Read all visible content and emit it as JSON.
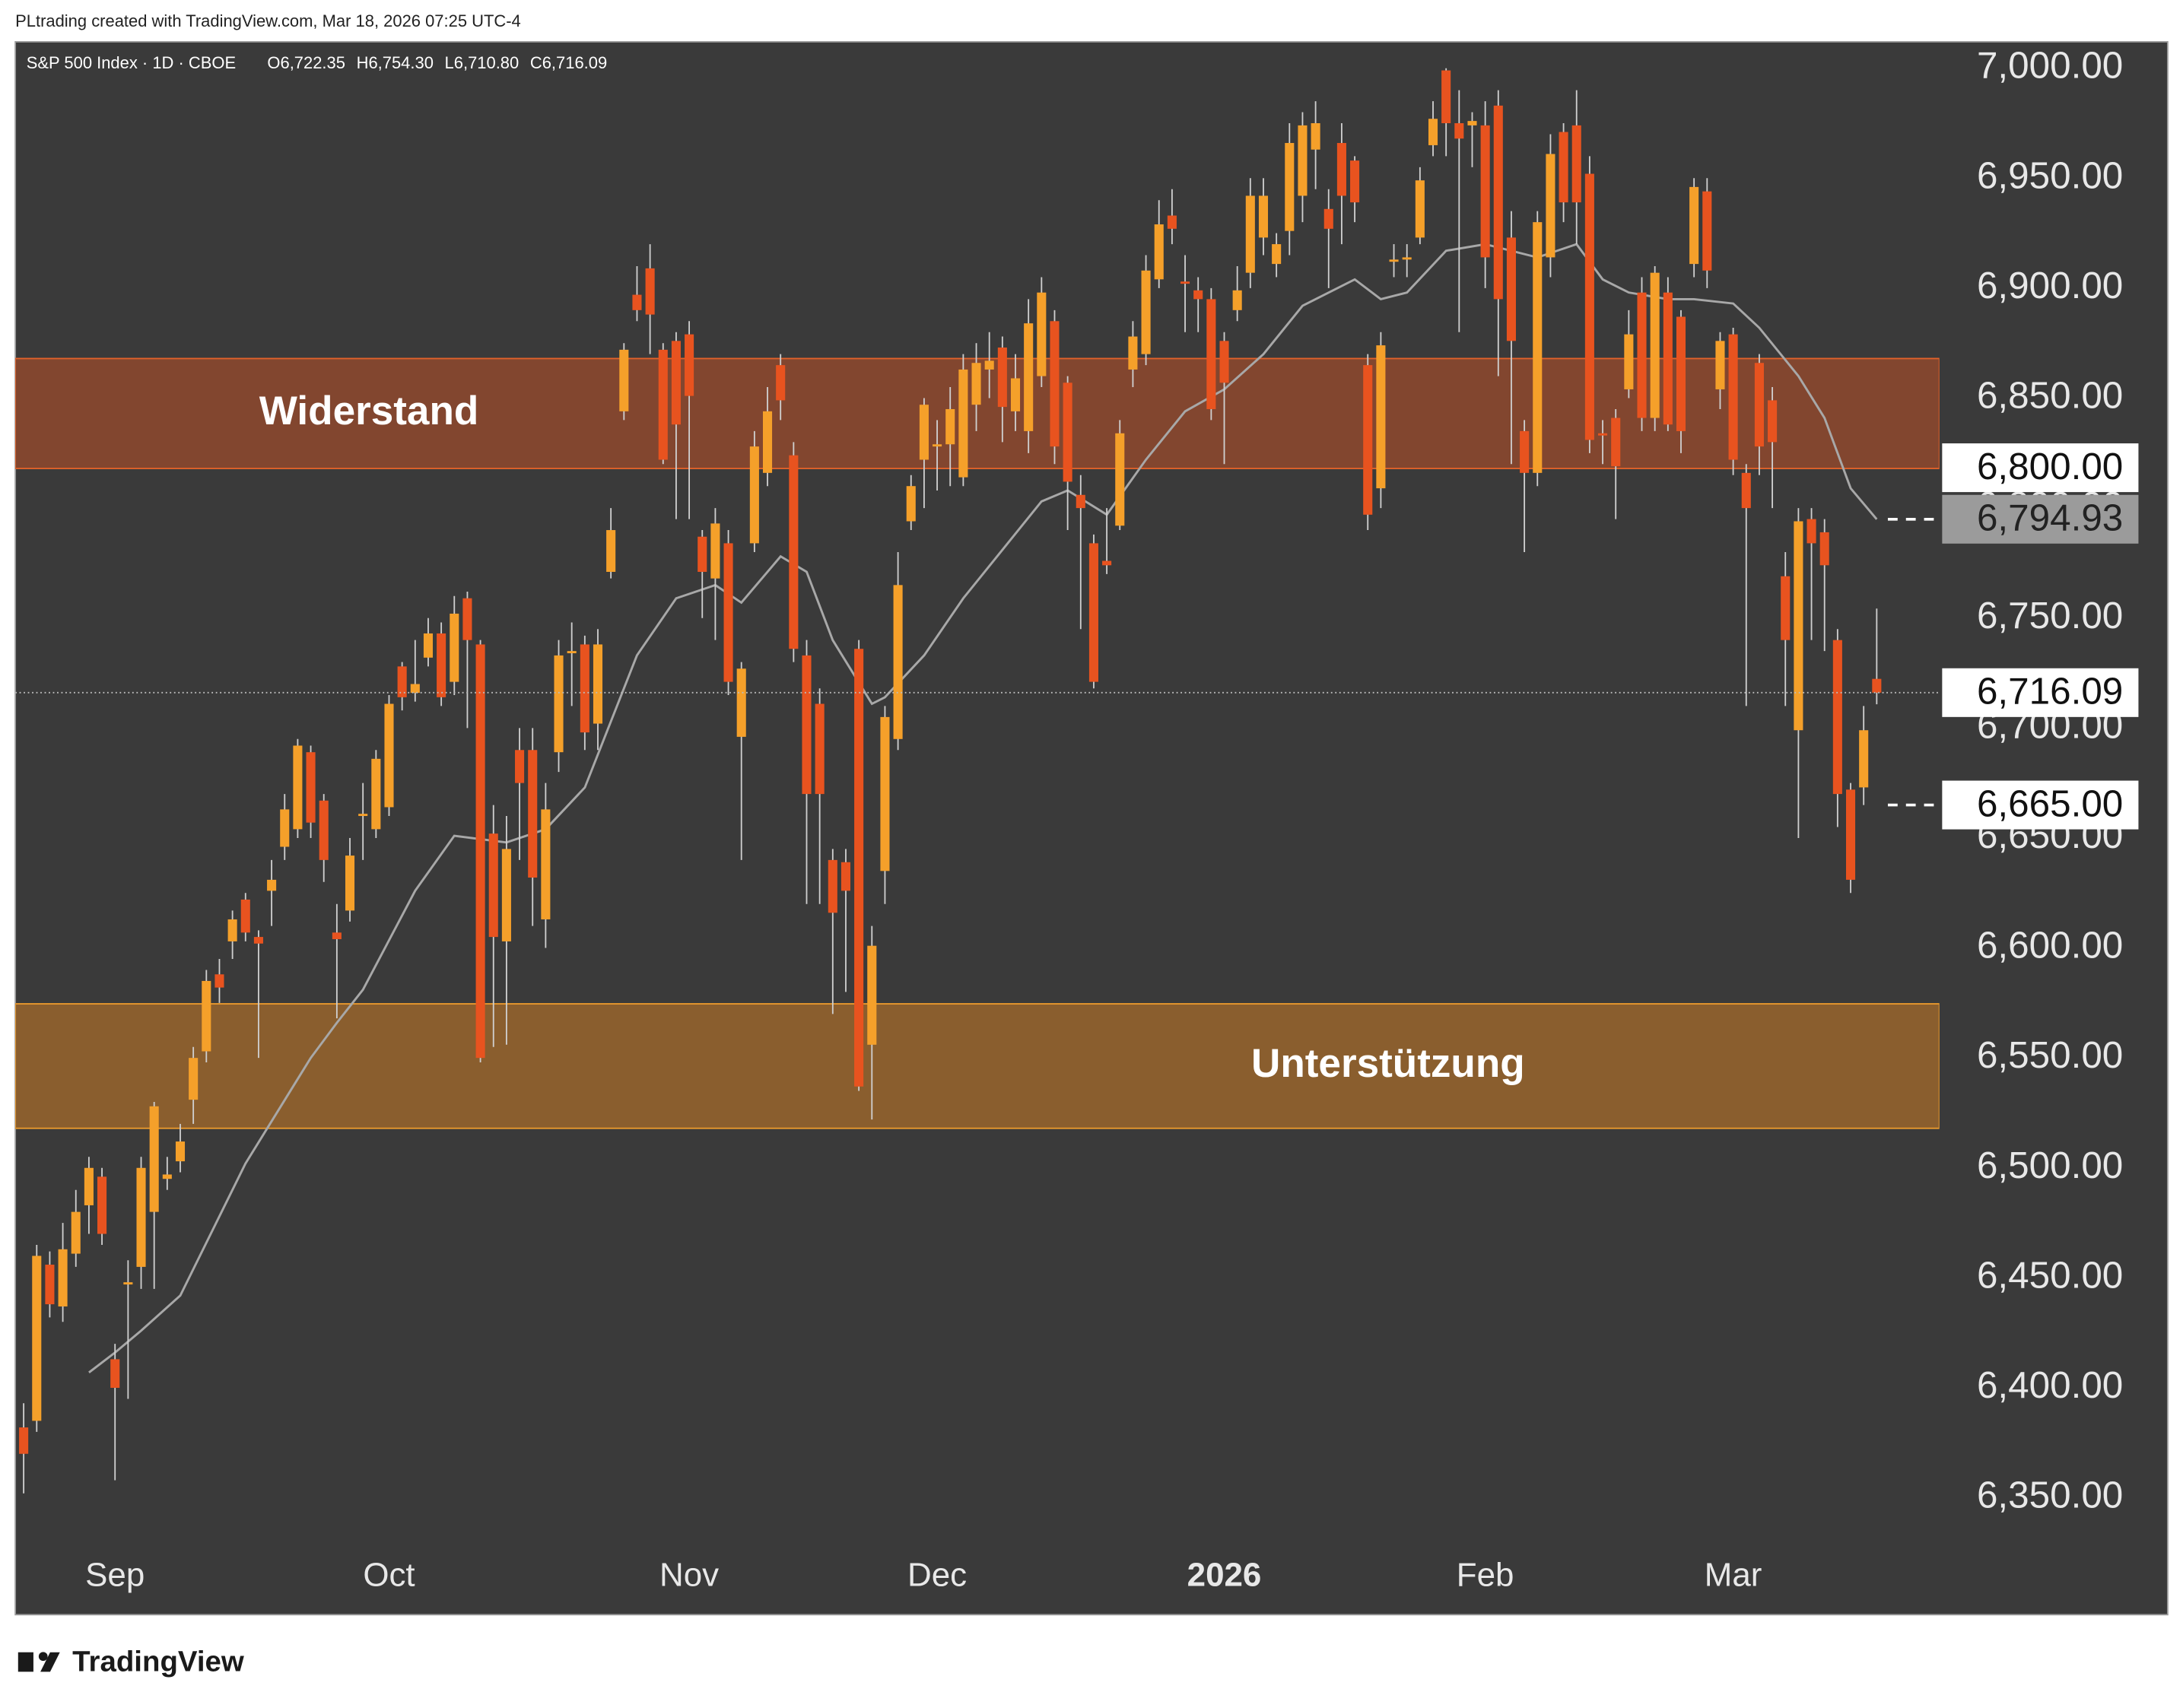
{
  "header": {
    "credit": "PLtrading created with TradingView.com, Mar 18, 2026 07:25 UTC-4",
    "logo": "TradingView"
  },
  "chart_data": {
    "type": "candlestick",
    "symbol": "S&P 500 Index · 1D · CBOE",
    "header_values": [
      "O6,722.35",
      "H6,754.30",
      "L6,710.80",
      "C6,716.09"
    ],
    "up_color": "#f5a02a",
    "down_color": "#e8531f",
    "wick_color": "#cfcfcf",
    "background": "#3a3a3a",
    "xlim": [
      -0.64,
      146.8
    ],
    "ylim": [
      6328.5,
      7012
    ],
    "xticks": [
      {
        "value": 7,
        "label": "Sep"
      },
      {
        "value": 28,
        "label": "Oct"
      },
      {
        "value": 51,
        "label": "Nov"
      },
      {
        "value": 70,
        "label": "Dec"
      },
      {
        "value": 92,
        "label": "2026"
      },
      {
        "value": 112,
        "label": "Feb"
      },
      {
        "value": 131,
        "label": "Mar"
      }
    ],
    "yticks": [
      {
        "value": 6350,
        "label": "6,350.00"
      },
      {
        "value": 6400,
        "label": "6,400.00"
      },
      {
        "value": 6450,
        "label": "6,450.00"
      },
      {
        "value": 6500,
        "label": "6,500.00"
      },
      {
        "value": 6550,
        "label": "6,550.00"
      },
      {
        "value": 6600,
        "label": "6,600.00"
      },
      {
        "value": 6650,
        "label": "6,650.00"
      },
      {
        "value": 6700,
        "label": "6,700.00"
      },
      {
        "value": 6750,
        "label": "6,750.00"
      },
      {
        "value": 6800,
        "label": "6,800.00"
      },
      {
        "value": 6850,
        "label": "6,850.00"
      },
      {
        "value": 6900,
        "label": "6,900.00"
      },
      {
        "value": 6950,
        "label": "6,950.00"
      },
      {
        "value": 7000,
        "label": "7,000.00"
      }
    ],
    "open": [
      6382,
      6385,
      6456,
      6437,
      6461,
      6483,
      6496,
      6413,
      6447,
      6455,
      6480,
      6495,
      6503,
      6531,
      6553,
      6588,
      6603,
      6622,
      6605,
      6626,
      6646,
      6654,
      6689,
      6667,
      6607,
      6617,
      6660,
      6654,
      6664,
      6728,
      6716,
      6732,
      6743,
      6721,
      6759,
      6738,
      6652,
      6603,
      6690,
      6690,
      6613,
      6689,
      6734,
      6738,
      6702,
      6771,
      6844,
      6897,
      6909,
      6872,
      6876,
      6879,
      6787,
      6768,
      6784,
      6696,
      6784,
      6816,
      6865,
      6824,
      6733,
      6711,
      6640,
      6639,
      6736,
      6556,
      6635,
      6695,
      6794,
      6822,
      6828,
      6829,
      6814,
      6847,
      6863,
      6873,
      6844,
      6835,
      6860,
      6885,
      6857,
      6806,
      6784,
      6776,
      6792,
      6863,
      6870,
      6904,
      6933,
      6903,
      6899,
      6895,
      6876,
      6890,
      6907,
      6923,
      6911,
      6926,
      6942,
      6963,
      6936,
      6966,
      6958,
      6865,
      6809,
      6912,
      6913,
      6923,
      6965,
      6999,
      6975,
      6974,
      6974,
      6983,
      6923,
      6835,
      6816,
      6914,
      6971,
      6974,
      6952,
      6834,
      6841,
      6854,
      6898,
      6841,
      6898,
      6887,
      6911,
      6944,
      6854,
      6879,
      6816,
      6866,
      6849,
      6769,
      6699,
      6795,
      6789,
      6740,
      6672,
      6673,
      6722.35
    ],
    "high": [
      6393,
      6465,
      6462,
      6475,
      6490,
      6505,
      6500,
      6420,
      6458,
      6505,
      6530,
      6505,
      6520,
      6555,
      6590,
      6595,
      6617,
      6625,
      6608,
      6640,
      6670,
      6695,
      6692,
      6670,
      6620,
      6650,
      6675,
      6690,
      6715,
      6730,
      6740,
      6750,
      6748,
      6760,
      6762,
      6740,
      6665,
      6660,
      6700,
      6700,
      6675,
      6740,
      6748,
      6742,
      6745,
      6800,
      6875,
      6910,
      6920,
      6875,
      6880,
      6885,
      6790,
      6800,
      6790,
      6730,
      6835,
      6855,
      6870,
      6830,
      6740,
      6718,
      6645,
      6645,
      6740,
      6610,
      6710,
      6780,
      6815,
      6850,
      6840,
      6855,
      6870,
      6875,
      6880,
      6878,
      6870,
      6895,
      6905,
      6890,
      6860,
      6815,
      6788,
      6800,
      6840,
      6885,
      6915,
      6940,
      6945,
      6915,
      6905,
      6900,
      6880,
      6910,
      6950,
      6950,
      6925,
      6975,
      6980,
      6985,
      6945,
      6975,
      6960,
      6870,
      6880,
      6920,
      6920,
      6955,
      6985,
      7000,
      6990,
      6980,
      6985,
      6990,
      6935,
      6840,
      6935,
      6970,
      6975,
      6990,
      6960,
      6840,
      6845,
      6890,
      6905,
      6910,
      6905,
      6890,
      6950,
      6950,
      6880,
      6882,
      6820,
      6870,
      6855,
      6780,
      6800,
      6800,
      6795,
      6745,
      6675,
      6710,
      6754.3
    ],
    "low": [
      6352,
      6380,
      6432,
      6430,
      6455,
      6470,
      6465,
      6358,
      6395,
      6445,
      6445,
      6490,
      6498,
      6520,
      6548,
      6575,
      6595,
      6603,
      6550,
      6610,
      6640,
      6650,
      6650,
      6630,
      6568,
      6612,
      6640,
      6650,
      6660,
      6708,
      6712,
      6728,
      6710,
      6715,
      6700,
      6548,
      6555,
      6556,
      6640,
      6610,
      6600,
      6680,
      6710,
      6690,
      6690,
      6768,
      6840,
      6885,
      6870,
      6820,
      6795,
      6795,
      6750,
      6740,
      6715,
      6640,
      6780,
      6810,
      6840,
      6730,
      6620,
      6620,
      6570,
      6580,
      6535,
      6522,
      6620,
      6690,
      6790,
      6800,
      6808,
      6810,
      6810,
      6835,
      6850,
      6830,
      6835,
      6825,
      6855,
      6820,
      6790,
      6745,
      6718,
      6770,
      6790,
      6855,
      6865,
      6900,
      6920,
      6880,
      6880,
      6840,
      6820,
      6885,
      6900,
      6915,
      6905,
      6915,
      6930,
      6945,
      6900,
      6920,
      6930,
      6790,
      6800,
      6905,
      6905,
      6920,
      6960,
      6960,
      6880,
      6955,
      6900,
      6860,
      6820,
      6780,
      6810,
      6905,
      6930,
      6920,
      6825,
      6820,
      6795,
      6850,
      6835,
      6835,
      6835,
      6825,
      6905,
      6900,
      6845,
      6815,
      6710,
      6815,
      6800,
      6710,
      6650,
      6740,
      6735,
      6655,
      6625,
      6665,
      6710.8
    ],
    "close": [
      6370,
      6460,
      6438,
      6463,
      6480,
      6500,
      6470,
      6400,
      6448,
      6500,
      6528,
      6497,
      6512,
      6550,
      6585,
      6582,
      6613,
      6607,
      6602,
      6631,
      6663,
      6692,
      6657,
      6640,
      6604,
      6642,
      6661,
      6686,
      6711,
      6714,
      6720,
      6743,
      6714,
      6752,
      6740,
      6550,
      6605,
      6645,
      6675,
      6632,
      6663,
      6733,
      6735,
      6698,
      6738,
      6790,
      6872,
      6890,
      6888,
      6822,
      6838,
      6851,
      6771,
      6793,
      6721,
      6727,
      6828,
      6844,
      6849,
      6736,
      6670,
      6670,
      6616,
      6626,
      6537,
      6601,
      6705,
      6765,
      6810,
      6847,
      6829,
      6845,
      6863,
      6866,
      6867,
      6846,
      6859,
      6884,
      6898,
      6828,
      6812,
      6800,
      6721,
      6774,
      6834,
      6878,
      6908,
      6929,
      6927,
      6902,
      6895,
      6845,
      6857,
      6899,
      6942,
      6942,
      6920,
      6966,
      6974,
      6975,
      6927,
      6942,
      6939,
      6797,
      6874,
      6913,
      6914,
      6949,
      6977,
      6975,
      6968,
      6976,
      6914,
      6895,
      6876,
      6816,
      6930,
      6961,
      6939,
      6939,
      6831,
      6833,
      6819,
      6879,
      6841,
      6907,
      6838,
      6835,
      6946,
      6908,
      6876,
      6822,
      6800,
      6828,
      6830,
      6740,
      6794,
      6784,
      6774,
      6670,
      6631,
      6699,
      6716.09
    ],
    "moving_average": {
      "color": "#a8a8a8",
      "x": [
        5,
        7,
        9,
        12,
        17,
        22,
        24,
        26,
        30,
        33,
        37,
        40,
        43,
        47,
        50,
        53,
        55,
        58,
        60,
        62,
        65,
        66,
        69,
        72,
        75,
        78,
        80,
        83,
        86,
        89,
        92,
        95,
        98,
        102,
        104,
        106,
        109,
        112,
        116,
        119,
        121,
        123,
        126,
        128,
        131,
        133,
        136,
        138,
        140,
        142
      ],
      "values": [
        6407,
        6416,
        6426,
        6442,
        6502,
        6550,
        6566,
        6581,
        6626,
        6651,
        6648,
        6654,
        6673,
        6733,
        6759,
        6765,
        6757,
        6778,
        6771,
        6740,
        6711,
        6714,
        6733,
        6759,
        6781,
        6803,
        6808,
        6797,
        6822,
        6844,
        6854,
        6870,
        6892,
        6904,
        6895,
        6898,
        6917,
        6920,
        6914,
        6920,
        6904,
        6898,
        6895,
        6895,
        6893,
        6882,
        6860,
        6841,
        6809,
        6794.93
      ]
    },
    "zones": [
      {
        "label": "Widerstand",
        "from": 6818,
        "to": 6868,
        "fill": "#82462f",
        "stroke": "#e2622a"
      },
      {
        "label": "Unterstützung",
        "from": 6518,
        "to": 6574.6,
        "fill": "#8a5e2e",
        "stroke": "#eb9a2c"
      }
    ],
    "price_labels": [
      {
        "value": 6800,
        "label": "6,800.00",
        "style": "white"
      },
      {
        "value": 6794.93,
        "label": "6,794.93",
        "style": "gray",
        "line": "dashed"
      },
      {
        "value": 6716.09,
        "label": "6,716.09",
        "style": "white",
        "line": "dotted"
      },
      {
        "value": 6665,
        "label": "6,665.00",
        "style": "white",
        "line": "dashed"
      }
    ]
  }
}
